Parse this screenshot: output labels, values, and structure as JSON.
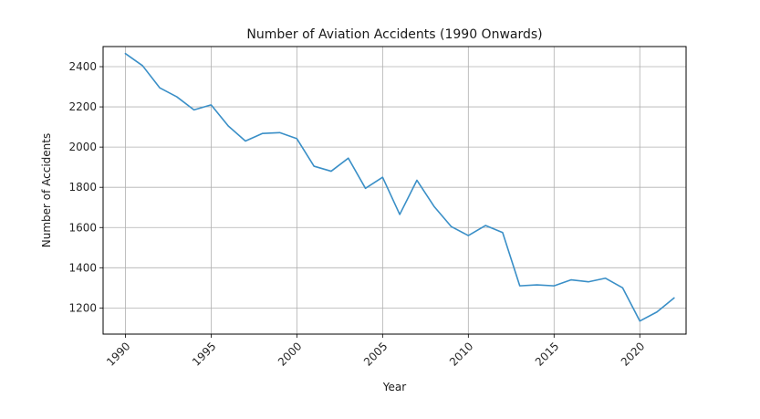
{
  "chart_data": {
    "type": "line",
    "title": "Number of Aviation Accidents (1990 Onwards)",
    "xlabel": "Year",
    "ylabel": "Number of Accidents",
    "xlim": [
      1988.7,
      2022.7
    ],
    "ylim": [
      1070,
      2500
    ],
    "x_ticks": [
      1990,
      1995,
      2000,
      2005,
      2010,
      2015,
      2020
    ],
    "x_tick_labels": [
      "1990",
      "1995",
      "2000",
      "2005",
      "2010",
      "2015",
      "2020"
    ],
    "y_ticks": [
      1200,
      1400,
      1600,
      1800,
      2000,
      2200,
      2400
    ],
    "y_tick_labels": [
      "1200",
      "1400",
      "1600",
      "1800",
      "2000",
      "2200",
      "2400"
    ],
    "grid": true,
    "line_color": "#3a8fc7",
    "x": [
      1990,
      1991,
      1992,
      1993,
      1994,
      1995,
      1996,
      1997,
      1998,
      1999,
      2000,
      2001,
      2002,
      2003,
      2004,
      2005,
      2006,
      2007,
      2008,
      2009,
      2010,
      2011,
      2012,
      2013,
      2014,
      2015,
      2016,
      2017,
      2018,
      2019,
      2020,
      2021,
      2022
    ],
    "series": [
      {
        "values": [
          2465,
          2405,
          2295,
          2250,
          2185,
          2210,
          2105,
          2030,
          2068,
          2072,
          2042,
          1905,
          1880,
          1945,
          1795,
          1850,
          1665,
          1835,
          1705,
          1605,
          1560,
          1610,
          1575,
          1310,
          1315,
          1310,
          1340,
          1330,
          1348,
          1300,
          1135,
          1180,
          1250
        ]
      }
    ]
  }
}
